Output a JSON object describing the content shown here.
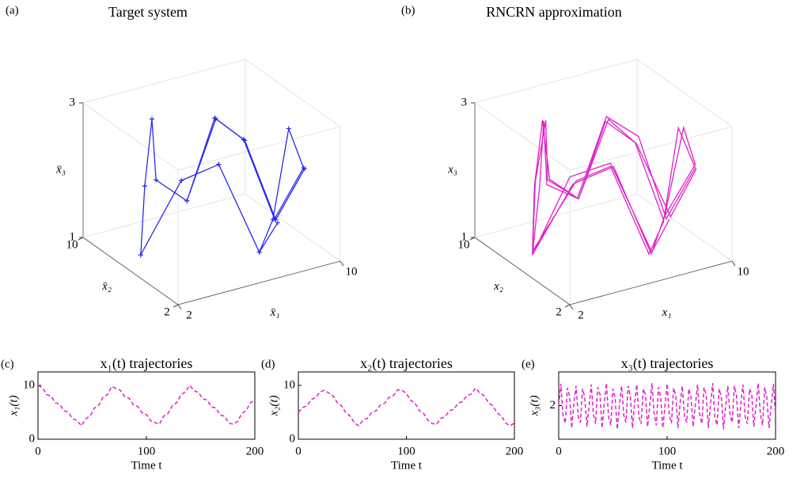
{
  "chart_data": [
    {
      "type": "line3d",
      "panel": "(a)",
      "title": "Target system",
      "xlabel": "x̄₁",
      "ylabel": "x̄₂",
      "zlabel": "x̄₃",
      "color": "#2a2af0",
      "marker": "+",
      "xlim": [
        2,
        10
      ],
      "ylim": [
        2,
        10
      ],
      "zlim": [
        1,
        3
      ],
      "xticks": [
        2,
        10
      ],
      "yticks": [
        2,
        10
      ],
      "zticks": [
        1,
        3
      ],
      "x": [
        10,
        9.1,
        8.1,
        7.2,
        6.3,
        5.3,
        4.4,
        3.4,
        2.5,
        3.8,
        5.0,
        6.3,
        7.5,
        8.8,
        10,
        9.1,
        8.1,
        7.2,
        6.3,
        5.3,
        4.4,
        3.4,
        2.5,
        3.8,
        5.0,
        6.3,
        7.5,
        8.8,
        10,
        9.1,
        8.1,
        7.2,
        6.3,
        5.3,
        4.4,
        3.4,
        2.5,
        3.8,
        5.0,
        6.3,
        7.5
      ],
      "y": [
        5,
        5.9,
        6.8,
        7.7,
        8.6,
        9.5,
        8.3,
        7.2,
        6.0,
        4.8,
        3.7,
        2.5,
        3.4,
        4.3,
        5.1,
        6.0,
        6.9,
        7.8,
        8.6,
        9.5,
        8.3,
        7.2,
        6.0,
        4.8,
        3.7,
        2.5,
        3.4,
        4.3,
        5.1,
        6.0,
        6.9,
        7.8,
        8.6,
        9.5,
        8.3,
        7.2,
        6.0,
        4.8,
        3.7,
        2.5,
        3.0
      ],
      "z": [
        2.0,
        1.2,
        2.35,
        2.63,
        1.37,
        1.65,
        2.78,
        2.0,
        1.2,
        2.35,
        2.63,
        1.37,
        1.65,
        2.78,
        2.0,
        1.2,
        2.35,
        2.63,
        1.37,
        1.65,
        2.78,
        2.0,
        1.2,
        2.35,
        2.63,
        1.37,
        1.65,
        2.78,
        2.0,
        1.2,
        2.35,
        2.63,
        1.37,
        1.65,
        2.78,
        2.0,
        1.2,
        2.35,
        2.63,
        1.37,
        1.65
      ]
    },
    {
      "type": "line3d",
      "panel": "(b)",
      "title": "RNCRN approximation",
      "xlabel": "x₁",
      "ylabel": "x₂",
      "zlabel": "x₃",
      "color": "#e020c8",
      "xlim": [
        2,
        10
      ],
      "ylim": [
        2,
        10
      ],
      "zlim": [
        1,
        3
      ],
      "xticks": [
        2,
        10
      ],
      "yticks": [
        2,
        10
      ],
      "zticks": [
        1,
        3
      ],
      "x": [
        10,
        9.2,
        8.1,
        7.3,
        6.3,
        5.2,
        4.4,
        3.5,
        2.5,
        3.7,
        5.0,
        6.4,
        7.5,
        8.9,
        10,
        9.0,
        8.1,
        7.1,
        6.3,
        5.4,
        4.4,
        3.3,
        2.5,
        3.9,
        5.0,
        6.2,
        7.5,
        8.7,
        10,
        9.1,
        8.2,
        7.2,
        6.3,
        5.3,
        4.5,
        3.4,
        2.5,
        3.8,
        5.1,
        6.3,
        7.5
      ],
      "y": [
        5,
        5.8,
        6.8,
        7.8,
        8.6,
        9.4,
        8.3,
        7.1,
        6.0,
        4.9,
        3.7,
        2.6,
        3.4,
        4.2,
        5.1,
        6.1,
        6.9,
        7.7,
        8.6,
        9.5,
        8.4,
        7.2,
        6.0,
        4.7,
        3.7,
        2.5,
        3.5,
        4.3,
        5.1,
        6.0,
        6.8,
        7.8,
        8.7,
        9.5,
        8.3,
        7.3,
        6.0,
        4.8,
        3.6,
        2.5,
        3.0
      ],
      "z": [
        2.0,
        1.25,
        2.3,
        2.6,
        1.4,
        1.6,
        2.75,
        2.0,
        1.2,
        2.4,
        2.65,
        1.35,
        1.7,
        2.8,
        2.05,
        1.2,
        2.3,
        2.6,
        1.4,
        1.65,
        2.75,
        2.0,
        1.25,
        2.35,
        2.6,
        1.35,
        1.6,
        2.8,
        2.0,
        1.2,
        2.4,
        2.65,
        1.4,
        1.65,
        2.75,
        2.05,
        1.2,
        2.3,
        2.6,
        1.35,
        1.7
      ]
    },
    {
      "type": "line",
      "panel": "(c)",
      "title": "x₁(t) trajectories",
      "xlabel": "Time t",
      "ylabel": "x₁(t)",
      "xlim": [
        0,
        200
      ],
      "ylim": [
        0,
        12.5
      ],
      "xticks": [
        0,
        100,
        200
      ],
      "yticks": [
        0,
        10
      ],
      "linestyle": "dashed",
      "x": [
        0,
        4,
        8,
        12,
        16,
        20,
        24,
        28,
        32,
        36,
        40,
        44,
        48,
        52,
        56,
        60,
        64,
        68,
        72,
        76,
        80,
        84,
        88,
        92,
        96,
        100,
        104,
        108,
        112,
        116,
        120,
        124,
        128,
        132,
        136,
        140,
        144,
        148,
        152,
        156,
        160,
        164,
        168,
        172,
        176,
        180,
        184,
        188,
        192,
        196,
        200
      ],
      "series": [
        {
          "color": "#e020c8",
          "values": [
            10,
            9.6,
            8.3,
            8.0,
            6.8,
            6.5,
            5.3,
            5.0,
            3.8,
            3.5,
            2.5,
            3.8,
            4.3,
            5.8,
            6.3,
            7.8,
            8.3,
            9.8,
            9.4,
            9.1,
            7.9,
            7.6,
            6.4,
            6.1,
            4.9,
            4.6,
            3.4,
            3.1,
            2.8,
            4.3,
            4.8,
            6.3,
            6.8,
            8.3,
            8.8,
            10,
            9.0,
            8.7,
            7.5,
            7.3,
            6.0,
            5.8,
            4.5,
            4.3,
            3.0,
            2.8,
            3.3,
            4.8,
            5.3,
            6.8,
            7.3
          ]
        }
      ]
    },
    {
      "type": "line",
      "panel": "(d)",
      "title": "x₂(t) trajectories",
      "xlabel": "Time t",
      "ylabel": "x₂(t)",
      "xlim": [
        0,
        200
      ],
      "ylim": [
        0,
        12.5
      ],
      "xticks": [
        0,
        100,
        200
      ],
      "yticks": [
        0,
        10
      ],
      "linestyle": "dashed",
      "x": [
        0,
        4,
        8,
        12,
        16,
        20,
        24,
        28,
        32,
        36,
        40,
        44,
        48,
        52,
        56,
        60,
        64,
        68,
        72,
        76,
        80,
        84,
        88,
        92,
        96,
        100,
        104,
        108,
        112,
        116,
        120,
        124,
        128,
        132,
        136,
        140,
        144,
        148,
        152,
        156,
        160,
        164,
        168,
        172,
        176,
        180,
        184,
        188,
        192,
        196,
        200
      ],
      "series": [
        {
          "color": "#e020c8",
          "values": [
            5,
            5.9,
            6.2,
            7.4,
            7.7,
            8.8,
            9.1,
            8.6,
            8.1,
            6.8,
            6.2,
            4.9,
            4.3,
            3.0,
            2.5,
            3.6,
            3.9,
            5.0,
            5.3,
            6.4,
            6.7,
            7.8,
            8.1,
            9.2,
            9.1,
            8.5,
            7.2,
            6.7,
            5.3,
            4.8,
            3.5,
            2.9,
            2.8,
            3.9,
            4.2,
            5.3,
            5.6,
            6.7,
            7.0,
            8.1,
            8.4,
            9.5,
            8.6,
            8.1,
            6.8,
            6.2,
            4.9,
            4.3,
            3.0,
            2.5,
            3.0
          ]
        }
      ]
    },
    {
      "type": "line",
      "panel": "(e)",
      "title": "x₃(t) trajectories",
      "xlabel": "Time t",
      "ylabel": "x₃(t)",
      "xlim": [
        0,
        200
      ],
      "ylim": [
        0.8,
        3.2
      ],
      "xticks": [
        0,
        100,
        200
      ],
      "yticks": [
        2
      ],
      "linestyle": "dashed",
      "x": [
        0,
        2,
        4,
        6,
        8,
        10,
        12,
        14,
        16,
        18,
        20,
        22,
        24,
        26,
        28,
        30,
        32,
        34,
        36,
        38,
        40,
        42,
        44,
        46,
        48,
        50,
        52,
        54,
        56,
        58,
        60,
        62,
        64,
        66,
        68,
        70,
        72,
        74,
        76,
        78,
        80,
        82,
        84,
        86,
        88,
        90,
        92,
        94,
        96,
        98,
        100,
        102,
        104,
        106,
        108,
        110,
        112,
        114,
        116,
        118,
        120,
        122,
        124,
        126,
        128,
        130,
        132,
        134,
        136,
        138,
        140,
        142,
        144,
        146,
        148,
        150,
        152,
        154,
        156,
        158,
        160,
        162,
        164,
        166,
        168,
        170,
        172,
        174,
        176,
        178,
        180,
        182,
        184,
        186,
        188,
        190,
        192,
        194,
        196,
        198,
        200
      ],
      "series": [
        {
          "color": "#e020c8",
          "values": [
            2.0,
            2.78,
            1.65,
            1.37,
            2.63,
            2.35,
            1.2,
            2.1,
            2.7,
            1.6,
            1.4,
            2.6,
            2.3,
            1.25,
            2.0,
            2.75,
            1.7,
            1.35,
            2.65,
            2.4,
            1.2,
            2.05,
            2.8,
            1.6,
            1.3,
            2.6,
            2.3,
            1.15,
            2.0,
            2.7,
            1.65,
            1.4,
            2.7,
            2.35,
            1.2,
            2.1,
            2.75,
            1.6,
            1.35,
            2.6,
            2.4,
            1.25,
            2.0,
            2.8,
            1.7,
            1.3,
            2.65,
            2.3,
            1.2,
            2.0,
            2.78,
            1.65,
            1.37,
            2.63,
            2.35,
            1.2,
            2.1,
            2.7,
            1.6,
            1.4,
            2.6,
            2.3,
            1.25,
            2.0,
            2.75,
            1.7,
            1.35,
            2.65,
            2.4,
            1.2,
            2.05,
            2.8,
            1.6,
            1.3,
            2.6,
            2.3,
            1.15,
            2.0,
            2.7,
            1.65,
            1.4,
            2.7,
            2.35,
            1.2,
            2.1,
            2.75,
            1.6,
            1.35,
            2.6,
            2.4,
            1.25,
            2.0,
            2.8,
            1.7,
            1.3,
            2.65,
            2.3,
            1.2,
            2.0,
            2.78,
            1.65
          ]
        }
      ]
    }
  ]
}
